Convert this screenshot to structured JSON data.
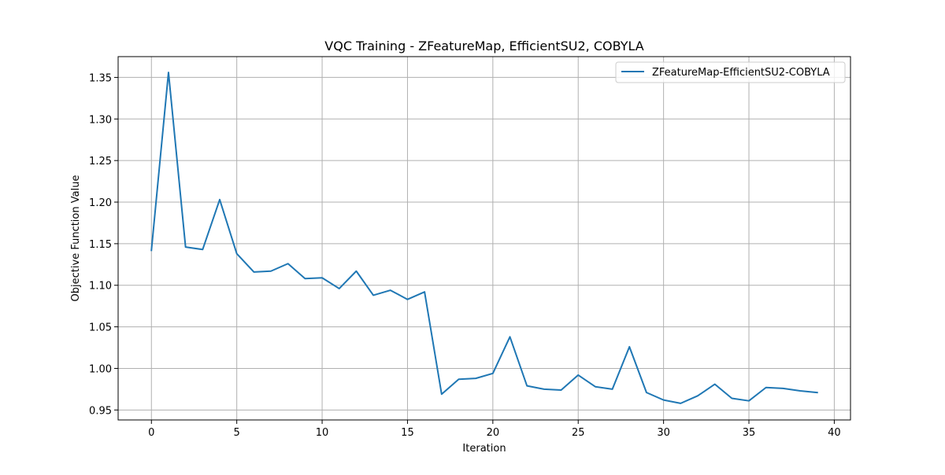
{
  "chart_data": {
    "type": "line",
    "title": "VQC Training - ZFeatureMap, EfficientSU2, COBYLA",
    "xlabel": "Iteration",
    "ylabel": "Objective Function Value",
    "xlim": [
      -1.95,
      40.95
    ],
    "ylim": [
      0.938,
      1.375
    ],
    "xticks": [
      0,
      5,
      10,
      15,
      20,
      25,
      30,
      35,
      40
    ],
    "yticks": [
      0.95,
      1.0,
      1.05,
      1.1,
      1.15,
      1.2,
      1.25,
      1.3,
      1.35
    ],
    "ytick_labels": [
      "0.95",
      "1.00",
      "1.05",
      "1.10",
      "1.15",
      "1.20",
      "1.25",
      "1.30",
      "1.35"
    ],
    "grid": true,
    "legend_position": "upper right",
    "series": [
      {
        "name": "ZFeatureMap-EfficientSU2-COBYLA",
        "color": "#1f77b4",
        "x": [
          0,
          1,
          2,
          3,
          4,
          5,
          6,
          7,
          8,
          9,
          10,
          11,
          12,
          13,
          14,
          15,
          16,
          17,
          18,
          19,
          20,
          21,
          22,
          23,
          24,
          25,
          26,
          27,
          28,
          29,
          30,
          31,
          32,
          33,
          34,
          35,
          36,
          37,
          38,
          39
        ],
        "values": [
          1.142,
          1.356,
          1.146,
          1.143,
          1.203,
          1.138,
          1.116,
          1.117,
          1.126,
          1.108,
          1.109,
          1.096,
          1.117,
          1.088,
          1.094,
          1.083,
          1.092,
          0.969,
          0.987,
          0.988,
          0.994,
          1.038,
          0.979,
          0.975,
          0.974,
          0.992,
          0.978,
          0.975,
          1.026,
          0.971,
          0.962,
          0.958,
          0.967,
          0.981,
          0.964,
          0.961,
          0.977,
          0.976,
          0.973,
          0.971
        ]
      }
    ]
  }
}
